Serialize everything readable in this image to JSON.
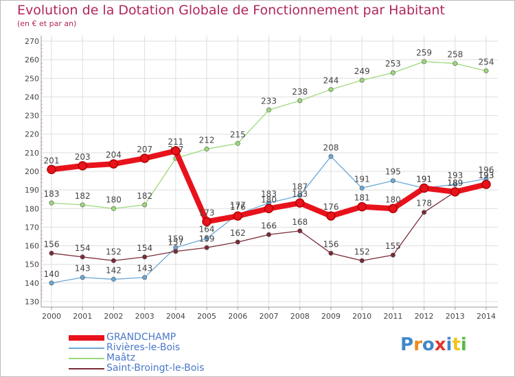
{
  "header": {
    "title": "Evolution de la Dotation Globale de Fonctionnement par Habitant",
    "subtitle": "(en € et par an)"
  },
  "logo": {
    "text": "Proxiti"
  },
  "chart_data": {
    "type": "line",
    "title": "Evolution de la Dotation Globale de Fonctionnement par Habitant",
    "subtitle": "(en € et par an)",
    "xlabel": "",
    "ylabel": "",
    "ylim": [
      130,
      270
    ],
    "ytick_step": 10,
    "grid": true,
    "legend_position": "bottom-left",
    "categories": [
      "2000",
      "2001",
      "2002",
      "2003",
      "2004",
      "2005",
      "2006",
      "2007",
      "2008",
      "2009",
      "2010",
      "2011",
      "2012",
      "2013",
      "2014"
    ],
    "series": [
      {
        "name": "Maâtz",
        "color": "#9bd97a",
        "values": [
          183,
          182,
          180,
          182,
          207,
          212,
          215,
          233,
          238,
          244,
          249,
          253,
          259,
          258,
          254
        ]
      },
      {
        "name": "Rivières-le-Bois",
        "color": "#6aa7d6",
        "values": [
          140,
          143,
          142,
          143,
          159,
          164,
          177,
          183,
          187,
          208,
          191,
          195,
          191,
          193,
          196
        ]
      },
      {
        "name": "Saint-Broingt-le-Bois",
        "color": "#7a2a36",
        "values": [
          156,
          154,
          152,
          154,
          157,
          159,
          162,
          166,
          168,
          156,
          152,
          155,
          178,
          189,
          193
        ]
      },
      {
        "name": "GRANDCHAMP",
        "color": "#e8121c",
        "values": [
          201,
          203,
          204,
          207,
          211,
          173,
          176,
          180,
          183,
          176,
          181,
          180,
          191,
          189,
          193
        ]
      }
    ]
  }
}
